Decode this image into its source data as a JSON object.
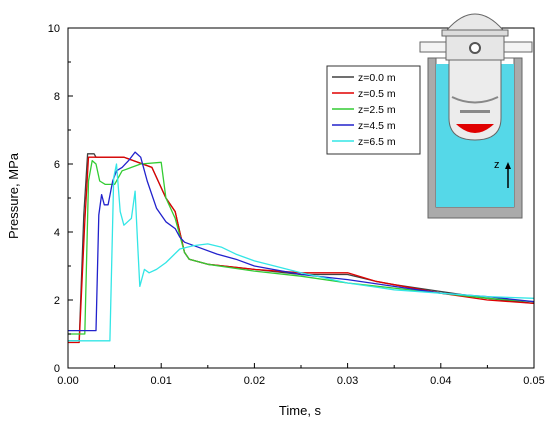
{
  "chart_data": {
    "type": "line",
    "xlabel": "Time, s",
    "ylabel": "Pressure, MPa",
    "xlim": [
      0,
      0.05
    ],
    "ylim": [
      0,
      10
    ],
    "xticks": [
      "0.00",
      "0.01",
      "0.02",
      "0.03",
      "0.04",
      "0.05"
    ],
    "yticks": [
      "0",
      "2",
      "4",
      "6",
      "8",
      "10"
    ],
    "grid": false,
    "legend_position": "top-right",
    "series": [
      {
        "name": "z=0.0 m",
        "color": "#404040",
        "points": [
          [
            0,
            0.8
          ],
          [
            0.0012,
            0.8
          ],
          [
            0.0017,
            4.5
          ],
          [
            0.0021,
            6.3
          ],
          [
            0.0028,
            6.3
          ],
          [
            0.003,
            6.2
          ],
          [
            0.006,
            6.2
          ],
          [
            0.009,
            5.9
          ],
          [
            0.0105,
            5.0
          ],
          [
            0.0115,
            4.6
          ],
          [
            0.012,
            4.0
          ],
          [
            0.0125,
            3.4
          ],
          [
            0.013,
            3.2
          ],
          [
            0.015,
            3.05
          ],
          [
            0.02,
            2.9
          ],
          [
            0.025,
            2.75
          ],
          [
            0.03,
            2.75
          ],
          [
            0.033,
            2.55
          ],
          [
            0.035,
            2.45
          ],
          [
            0.04,
            2.25
          ],
          [
            0.045,
            2.05
          ],
          [
            0.05,
            1.9
          ]
        ]
      },
      {
        "name": "z=0.5 m",
        "color": "#e00000",
        "points": [
          [
            0,
            0.75
          ],
          [
            0.0012,
            0.75
          ],
          [
            0.0018,
            4.3
          ],
          [
            0.0022,
            6.2
          ],
          [
            0.003,
            6.2
          ],
          [
            0.006,
            6.2
          ],
          [
            0.009,
            5.9
          ],
          [
            0.0105,
            5.0
          ],
          [
            0.0115,
            4.6
          ],
          [
            0.012,
            4.0
          ],
          [
            0.0125,
            3.4
          ],
          [
            0.013,
            3.2
          ],
          [
            0.015,
            3.05
          ],
          [
            0.02,
            2.9
          ],
          [
            0.025,
            2.8
          ],
          [
            0.03,
            2.8
          ],
          [
            0.033,
            2.55
          ],
          [
            0.035,
            2.45
          ],
          [
            0.04,
            2.2
          ],
          [
            0.045,
            2.0
          ],
          [
            0.05,
            1.9
          ]
        ]
      },
      {
        "name": "z=2.5 m",
        "color": "#33cc33",
        "points": [
          [
            0,
            1.0
          ],
          [
            0.0018,
            1.0
          ],
          [
            0.0022,
            5.5
          ],
          [
            0.0026,
            6.1
          ],
          [
            0.003,
            6.0
          ],
          [
            0.0034,
            5.5
          ],
          [
            0.004,
            5.4
          ],
          [
            0.005,
            5.4
          ],
          [
            0.0058,
            5.8
          ],
          [
            0.0068,
            5.9
          ],
          [
            0.0078,
            6.0
          ],
          [
            0.01,
            6.05
          ],
          [
            0.0105,
            5.0
          ],
          [
            0.0115,
            4.4
          ],
          [
            0.012,
            3.9
          ],
          [
            0.0125,
            3.4
          ],
          [
            0.013,
            3.2
          ],
          [
            0.015,
            3.05
          ],
          [
            0.02,
            2.85
          ],
          [
            0.025,
            2.7
          ],
          [
            0.03,
            2.5
          ],
          [
            0.035,
            2.35
          ],
          [
            0.04,
            2.2
          ],
          [
            0.045,
            2.05
          ],
          [
            0.05,
            1.95
          ]
        ]
      },
      {
        "name": "z=4.5 m",
        "color": "#2222cc",
        "points": [
          [
            0,
            1.1
          ],
          [
            0.003,
            1.1
          ],
          [
            0.0033,
            4.5
          ],
          [
            0.0036,
            5.1
          ],
          [
            0.0039,
            4.8
          ],
          [
            0.0043,
            4.8
          ],
          [
            0.0048,
            5.5
          ],
          [
            0.0052,
            5.8
          ],
          [
            0.0058,
            5.9
          ],
          [
            0.0065,
            6.1
          ],
          [
            0.0072,
            6.35
          ],
          [
            0.0078,
            6.2
          ],
          [
            0.0085,
            5.5
          ],
          [
            0.0095,
            4.7
          ],
          [
            0.0105,
            4.3
          ],
          [
            0.0115,
            4.1
          ],
          [
            0.012,
            3.85
          ],
          [
            0.0125,
            3.7
          ],
          [
            0.014,
            3.55
          ],
          [
            0.016,
            3.35
          ],
          [
            0.018,
            3.2
          ],
          [
            0.02,
            3.0
          ],
          [
            0.025,
            2.75
          ],
          [
            0.03,
            2.6
          ],
          [
            0.035,
            2.4
          ],
          [
            0.04,
            2.2
          ],
          [
            0.045,
            2.1
          ],
          [
            0.05,
            1.95
          ]
        ]
      },
      {
        "name": "z=6.5 m",
        "color": "#33e6e6",
        "points": [
          [
            0,
            0.8
          ],
          [
            0.0045,
            0.8
          ],
          [
            0.0049,
            5.6
          ],
          [
            0.0052,
            6.0
          ],
          [
            0.0056,
            4.6
          ],
          [
            0.006,
            4.2
          ],
          [
            0.0064,
            4.3
          ],
          [
            0.0068,
            4.4
          ],
          [
            0.0072,
            5.2
          ],
          [
            0.0075,
            3.5
          ],
          [
            0.0077,
            2.4
          ],
          [
            0.0082,
            2.9
          ],
          [
            0.0087,
            2.8
          ],
          [
            0.0095,
            2.9
          ],
          [
            0.0105,
            3.1
          ],
          [
            0.012,
            3.5
          ],
          [
            0.0135,
            3.6
          ],
          [
            0.015,
            3.65
          ],
          [
            0.0165,
            3.55
          ],
          [
            0.018,
            3.35
          ],
          [
            0.02,
            3.15
          ],
          [
            0.025,
            2.8
          ],
          [
            0.03,
            2.5
          ],
          [
            0.035,
            2.3
          ],
          [
            0.04,
            2.2
          ],
          [
            0.045,
            2.1
          ],
          [
            0.05,
            2.05
          ]
        ]
      }
    ],
    "inset": {
      "axis_label": "z",
      "fill_color": "#55d8e8",
      "melt_color": "#e00000",
      "wall_color": "#aaaaaa"
    }
  }
}
